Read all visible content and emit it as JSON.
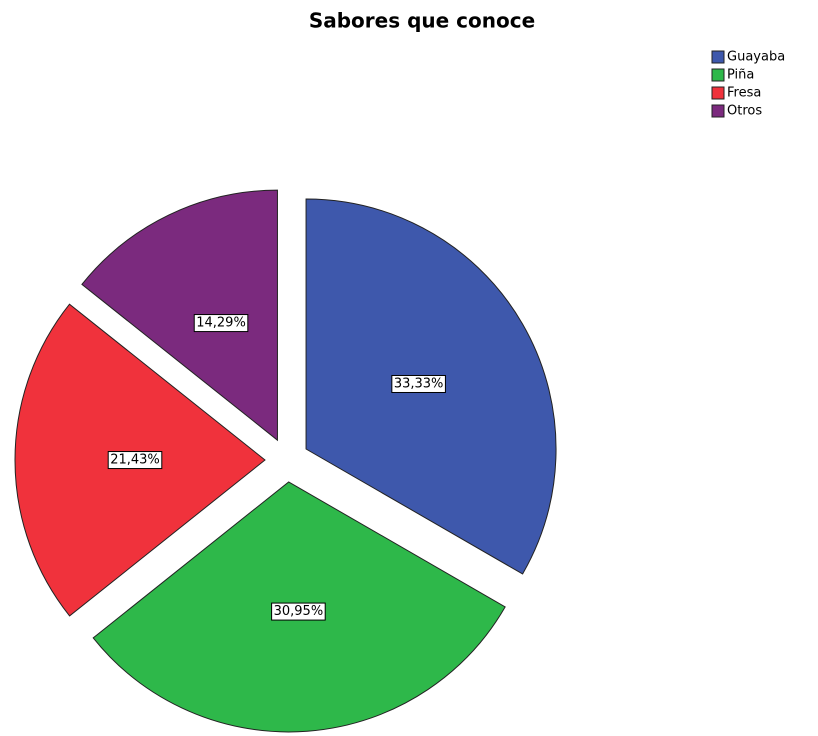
{
  "chart_data": {
    "type": "pie",
    "title": "Sabores que conoce",
    "categories": [
      "Guayaba",
      "Piña",
      "Fresa",
      "Otros"
    ],
    "values": [
      33.33,
      30.95,
      21.43,
      14.29
    ],
    "value_labels": [
      "33,33%",
      "30,95%",
      "21,43%",
      "14,29%"
    ],
    "colors": [
      "#3e58ac",
      "#2eb84a",
      "#f0323c",
      "#7b2a7e"
    ],
    "legend": "top-right"
  }
}
